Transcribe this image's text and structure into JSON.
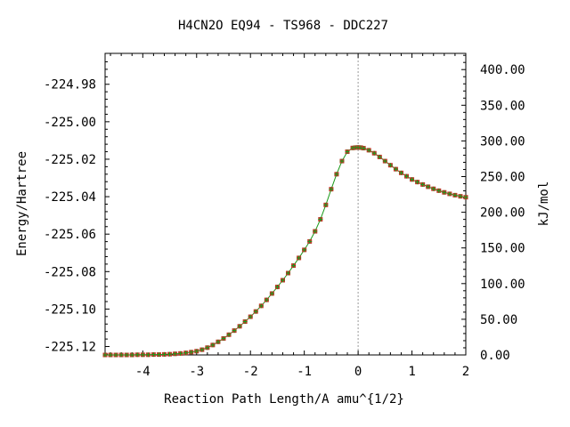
{
  "chart_data": {
    "type": "line",
    "title": "H4CN2O   EQ94 - TS968 - DDC227",
    "xlabel": "Reaction Path Length/A amu^{1/2}",
    "ylabel": "Energy/Hartree",
    "y2label": "kJ/mol",
    "xlim": [
      -4.7,
      2.0
    ],
    "ylim": [
      -225.1245,
      -224.9635
    ],
    "x_ticks": [
      "-4",
      "-3",
      "-2",
      "-1",
      "0",
      "1",
      "2"
    ],
    "y_ticks": [
      "-224.98",
      "-225.00",
      "-225.02",
      "-225.04",
      "-225.06",
      "-225.08",
      "-225.10",
      "-225.12"
    ],
    "y2_ticks": [
      "0.00",
      "50.00",
      "100.00",
      "150.00",
      "200.00",
      "250.00",
      "300.00",
      "350.00",
      "400.00"
    ],
    "y2_ref_hartree": -225.1245,
    "hartree_to_kjmol": 2625.5,
    "ts_marker_x": 0.0,
    "grid": false,
    "colors": {
      "line": "#1a9a1a",
      "marker": "#c0392b",
      "ts_line": "#9a9a9a",
      "axes": "#000000"
    },
    "series": [
      {
        "x": [
          -4.7,
          -4.6,
          -4.5,
          -4.4,
          -4.3,
          -4.2,
          -4.1,
          -4.0,
          -3.9,
          -3.8,
          -3.7,
          -3.6,
          -3.5,
          -3.4,
          -3.3,
          -3.2,
          -3.1,
          -3.0,
          -2.9,
          -2.8,
          -2.7,
          -2.6,
          -2.5,
          -2.4,
          -2.3,
          -2.2,
          -2.1,
          -2.0,
          -1.9,
          -1.8,
          -1.7,
          -1.6,
          -1.5,
          -1.4,
          -1.3,
          -1.2,
          -1.1,
          -1.0,
          -0.9,
          -0.8,
          -0.7,
          -0.6,
          -0.5,
          -0.4,
          -0.3,
          -0.2,
          -0.1,
          -0.05,
          0.0,
          0.05,
          0.1,
          0.2,
          0.3,
          0.4,
          0.5,
          0.6,
          0.7,
          0.8,
          0.9,
          1.0,
          1.1,
          1.2,
          1.3,
          1.4,
          1.5,
          1.6,
          1.7,
          1.8,
          1.9,
          2.0
        ],
        "y": [
          -225.1245,
          -225.1245,
          -225.1245,
          -225.1245,
          -225.1245,
          -225.1245,
          -225.1244,
          -225.1244,
          -225.1244,
          -225.1243,
          -225.1243,
          -225.1242,
          -225.1241,
          -225.1239,
          -225.1237,
          -225.1234,
          -225.123,
          -225.1225,
          -225.1217,
          -225.1206,
          -225.1192,
          -225.1175,
          -225.1157,
          -225.1137,
          -225.1115,
          -225.1092,
          -225.1067,
          -225.1041,
          -225.1013,
          -225.0983,
          -225.0951,
          -225.0917,
          -225.0882,
          -225.0846,
          -225.0808,
          -225.0768,
          -225.0727,
          -225.0684,
          -225.0639,
          -225.0585,
          -225.0521,
          -225.0444,
          -225.036,
          -225.028,
          -225.021,
          -225.016,
          -225.014,
          -225.0138,
          -225.0137,
          -225.0138,
          -225.0141,
          -225.0152,
          -225.0168,
          -225.0188,
          -225.021,
          -225.0232,
          -225.0253,
          -225.0273,
          -225.0291,
          -225.0308,
          -225.0322,
          -225.0335,
          -225.0347,
          -225.0358,
          -225.0368,
          -225.0377,
          -225.0385,
          -225.0392,
          -225.0398,
          -225.0403
        ]
      }
    ]
  }
}
